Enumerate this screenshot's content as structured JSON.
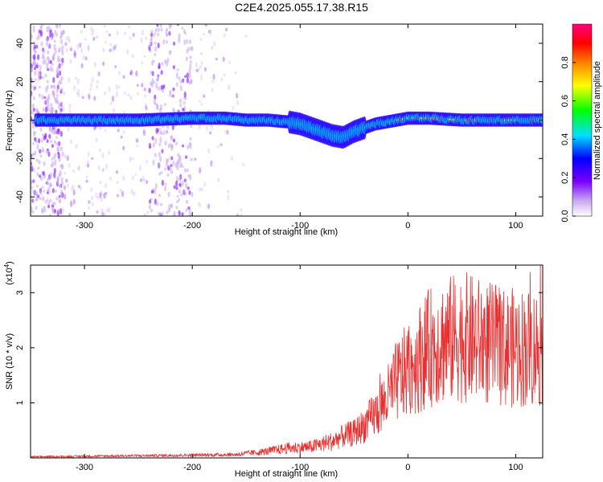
{
  "title": "C2E4.2025.055.17.38.R15",
  "chart_data": [
    {
      "type": "heatmap",
      "title": "C2E4.2025.055.17.38.R15",
      "xlabel": "Height of straight line (km)",
      "ylabel": "Frequency (Hz)",
      "xlim": [
        -350,
        125
      ],
      "ylim": [
        -50,
        50
      ],
      "xticks": [
        -300,
        -200,
        -100,
        0,
        100
      ],
      "yticks": [
        -40,
        -20,
        0,
        20,
        40
      ],
      "colorbar": {
        "label": "Normalized spectral amplitude",
        "ticks": [
          "0.0",
          "0.2",
          "0.4",
          "0.6",
          "0.8"
        ],
        "range": [
          0,
          1
        ],
        "colors": [
          "#ffffff",
          "#c8a8f0",
          "#7a00ff",
          "#0000ff",
          "#00e0ff",
          "#00ff00",
          "#ffff00",
          "#ff8000",
          "#ff0000",
          "#ff0080"
        ]
      },
      "ridge": {
        "x": [
          -350,
          -320,
          -300,
          -250,
          -200,
          -170,
          -150,
          -130,
          -110,
          -100,
          -90,
          -80,
          -70,
          -60,
          -50,
          -40,
          -30,
          -20,
          -10,
          0,
          20,
          50,
          80,
          100,
          125
        ],
        "y": [
          0,
          0,
          0,
          0,
          1,
          1,
          0,
          0,
          -1,
          -2,
          -4,
          -6,
          -8,
          -9,
          -6,
          -4,
          -2,
          -1,
          0,
          1,
          1,
          0,
          0,
          0,
          0
        ]
      }
    },
    {
      "type": "line",
      "xlabel": "Height of straight line (km)",
      "ylabel": "SNR (10 * v/v)",
      "yunit": "(x10",
      "yunit_exp": "4",
      "yunit_close": ")",
      "xlim": [
        -350,
        125
      ],
      "ylim": [
        0,
        3.5
      ],
      "xticks": [
        -300,
        -200,
        -100,
        0,
        100
      ],
      "yticks": [
        "1",
        "2",
        "3"
      ],
      "color": "#e83030",
      "series": [
        {
          "x": [
            -350,
            -250,
            -200,
            -160,
            -130,
            -110,
            -90,
            -80,
            -70,
            -60,
            -50,
            -40,
            -30,
            -20,
            -10,
            0,
            10,
            20,
            30,
            40,
            50,
            60,
            70,
            80,
            90,
            100,
            110,
            125
          ],
          "y": [
            0.02,
            0.04,
            0.05,
            0.06,
            0.12,
            0.18,
            0.2,
            0.25,
            0.3,
            0.4,
            0.45,
            0.6,
            0.8,
            1.05,
            1.4,
            1.6,
            1.8,
            2.0,
            2.1,
            2.15,
            2.2,
            2.15,
            2.1,
            2.05,
            2.0,
            2.0,
            2.0,
            2.0
          ]
        }
      ]
    }
  ]
}
